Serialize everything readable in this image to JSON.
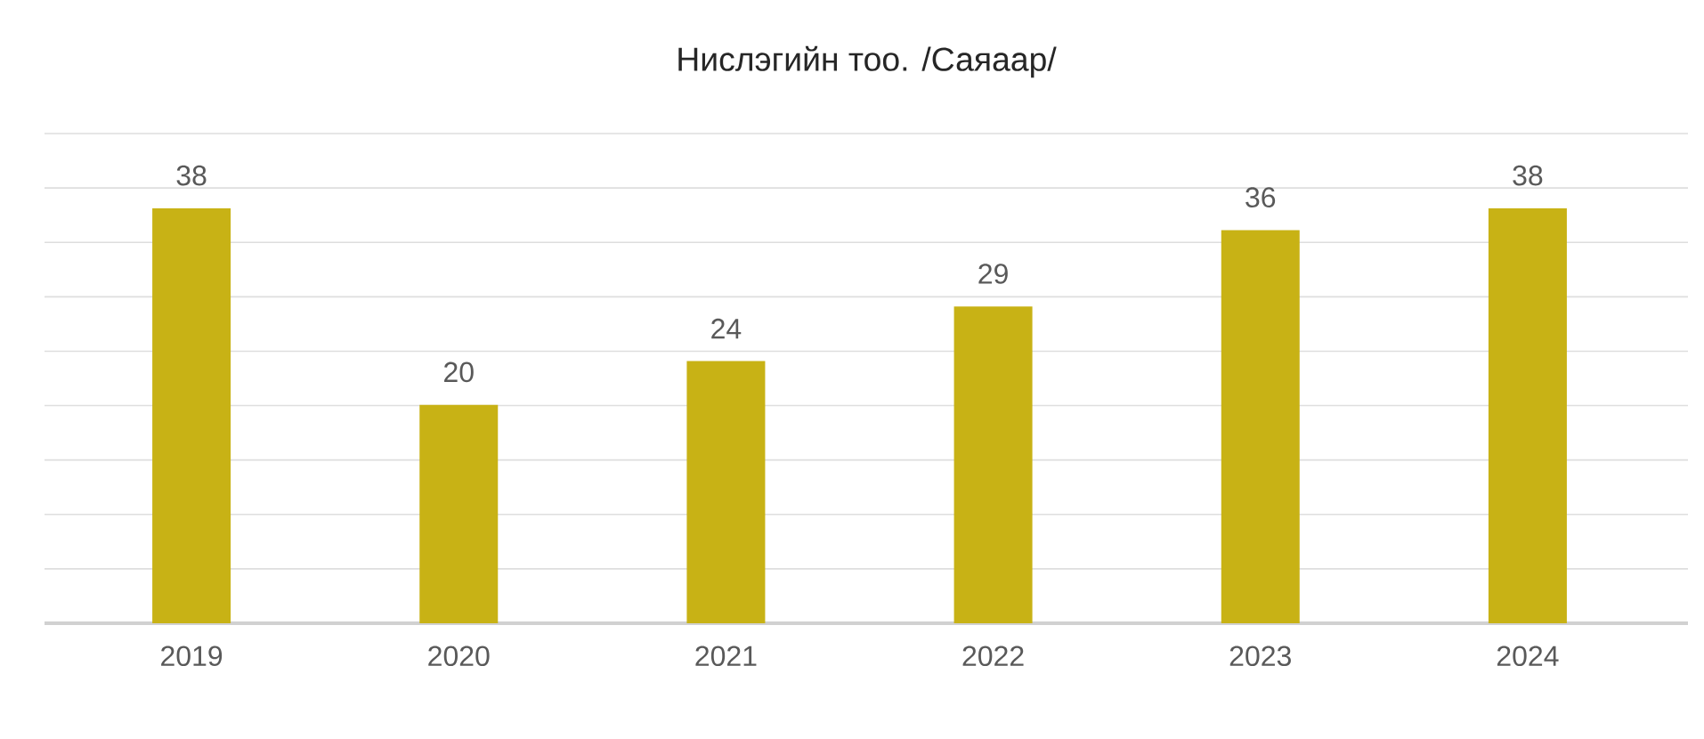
{
  "chart_data": {
    "type": "bar",
    "title": "Нислэгийн тоо. /Саяаар/",
    "categories": [
      "2019",
      "2020",
      "2021",
      "2022",
      "2023",
      "2024"
    ],
    "values": [
      38,
      20,
      24,
      29,
      36,
      38
    ],
    "color": "#c8b215",
    "tick_labels": "x",
    "grid": "y",
    "data_labels": true
  }
}
